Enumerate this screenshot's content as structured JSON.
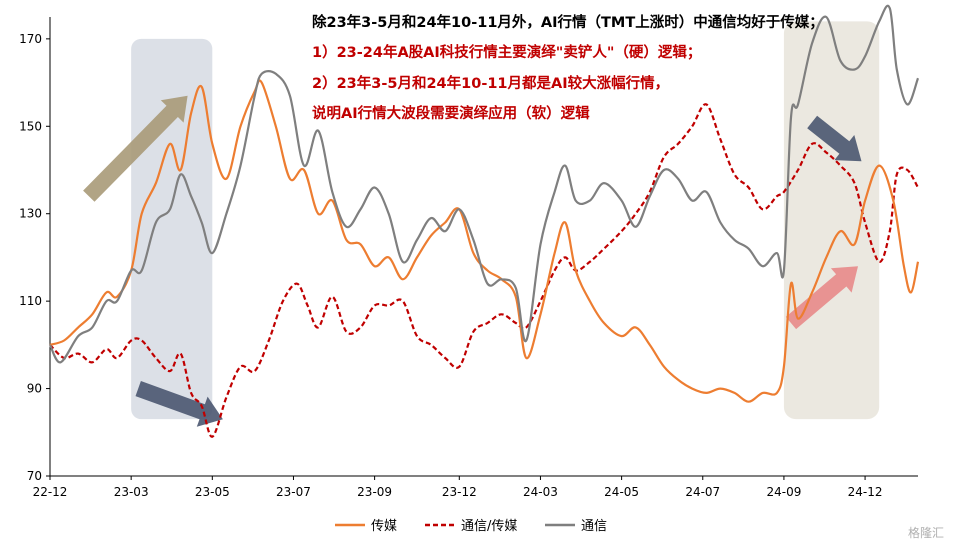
{
  "annotations": {
    "line1": "除23年3-5月和24年10-11月外，AI行情（TMT上涨时）中通信均好于传媒；",
    "line2": "1）23-24年A股AI科技行情主要演绎\"卖铲人\"（硬）逻辑；",
    "line3": "2）23年3-5月和24年10-11月都是AI较大涨幅行情，",
    "line4": "说明AI行情大波段需要演绎应用（软）逻辑",
    "line1_color": "#000000",
    "red_color": "#c00000"
  },
  "watermark": "格隆汇",
  "colors": {
    "media": "#ed7d31",
    "ratio": "#c00000",
    "telecom": "#7f7f7f",
    "shade_blue": "#d6dae3",
    "shade_beige": "#e8e4da",
    "arrow_tan": "#a89a78",
    "arrow_navy": "#4a5670",
    "arrow_pink": "#e88a8a"
  },
  "chart_data": {
    "type": "line",
    "ylim": [
      70,
      175
    ],
    "yticks": [
      70,
      90,
      110,
      130,
      150,
      170
    ],
    "xlim": [
      0,
      24.6
    ],
    "xticks": [
      {
        "pos": 0,
        "label": "22-12"
      },
      {
        "pos": 2.3,
        "label": "23-03"
      },
      {
        "pos": 4.6,
        "label": "23-05"
      },
      {
        "pos": 6.9,
        "label": "23-07"
      },
      {
        "pos": 9.2,
        "label": "23-09"
      },
      {
        "pos": 11.6,
        "label": "23-12"
      },
      {
        "pos": 13.9,
        "label": "24-03"
      },
      {
        "pos": 16.2,
        "label": "24-05"
      },
      {
        "pos": 18.5,
        "label": "24-07"
      },
      {
        "pos": 20.8,
        "label": "24-09"
      },
      {
        "pos": 23.1,
        "label": "24-12"
      }
    ],
    "series": [
      {
        "name": "传媒",
        "style": "solid",
        "points": [
          [
            0.0,
            100
          ],
          [
            0.4,
            101
          ],
          [
            0.8,
            104
          ],
          [
            1.2,
            107
          ],
          [
            1.6,
            112
          ],
          [
            1.9,
            111
          ],
          [
            2.3,
            117
          ],
          [
            2.6,
            130
          ],
          [
            3.0,
            137
          ],
          [
            3.4,
            146
          ],
          [
            3.7,
            140
          ],
          [
            4.0,
            153
          ],
          [
            4.3,
            159
          ],
          [
            4.6,
            146
          ],
          [
            5.0,
            138
          ],
          [
            5.4,
            150
          ],
          [
            5.8,
            158
          ],
          [
            6.0,
            160
          ],
          [
            6.4,
            150
          ],
          [
            6.8,
            138
          ],
          [
            7.2,
            140
          ],
          [
            7.6,
            130
          ],
          [
            8.0,
            133
          ],
          [
            8.4,
            124
          ],
          [
            8.8,
            123
          ],
          [
            9.2,
            118
          ],
          [
            9.6,
            120
          ],
          [
            10.0,
            115
          ],
          [
            10.4,
            120
          ],
          [
            10.8,
            125
          ],
          [
            11.2,
            128
          ],
          [
            11.6,
            131
          ],
          [
            12.0,
            121
          ],
          [
            12.4,
            117
          ],
          [
            12.8,
            115
          ],
          [
            13.2,
            111
          ],
          [
            13.5,
            97
          ],
          [
            13.9,
            107
          ],
          [
            14.3,
            121
          ],
          [
            14.6,
            128
          ],
          [
            14.9,
            117
          ],
          [
            15.3,
            110
          ],
          [
            15.7,
            105
          ],
          [
            16.2,
            102
          ],
          [
            16.6,
            104
          ],
          [
            17.0,
            100
          ],
          [
            17.4,
            95
          ],
          [
            17.8,
            92
          ],
          [
            18.2,
            90
          ],
          [
            18.6,
            89
          ],
          [
            19.0,
            90
          ],
          [
            19.4,
            89
          ],
          [
            19.8,
            87
          ],
          [
            20.2,
            89
          ],
          [
            20.6,
            89
          ],
          [
            20.8,
            95
          ],
          [
            21.0,
            114
          ],
          [
            21.2,
            106
          ],
          [
            21.6,
            112
          ],
          [
            22.0,
            120
          ],
          [
            22.4,
            126
          ],
          [
            22.8,
            123
          ],
          [
            23.1,
            133
          ],
          [
            23.5,
            141
          ],
          [
            23.9,
            133
          ],
          [
            24.2,
            118
          ],
          [
            24.4,
            112
          ],
          [
            24.6,
            119
          ]
        ]
      },
      {
        "name": "通信/传媒",
        "style": "dashed",
        "points": [
          [
            0.0,
            100
          ],
          [
            0.4,
            97
          ],
          [
            0.8,
            98
          ],
          [
            1.2,
            96
          ],
          [
            1.6,
            99
          ],
          [
            1.9,
            97
          ],
          [
            2.3,
            101
          ],
          [
            2.6,
            101
          ],
          [
            3.0,
            97
          ],
          [
            3.4,
            94
          ],
          [
            3.7,
            98
          ],
          [
            4.0,
            89
          ],
          [
            4.3,
            86
          ],
          [
            4.6,
            79
          ],
          [
            5.0,
            88
          ],
          [
            5.4,
            95
          ],
          [
            5.8,
            94
          ],
          [
            6.2,
            101
          ],
          [
            6.6,
            110
          ],
          [
            7.0,
            114
          ],
          [
            7.3,
            109
          ],
          [
            7.6,
            104
          ],
          [
            8.0,
            111
          ],
          [
            8.4,
            103
          ],
          [
            8.8,
            104
          ],
          [
            9.2,
            109
          ],
          [
            9.6,
            109
          ],
          [
            10.0,
            110
          ],
          [
            10.4,
            102
          ],
          [
            10.8,
            100
          ],
          [
            11.2,
            97
          ],
          [
            11.6,
            95
          ],
          [
            12.0,
            103
          ],
          [
            12.4,
            105
          ],
          [
            12.8,
            107
          ],
          [
            13.2,
            105
          ],
          [
            13.5,
            104
          ],
          [
            13.9,
            110
          ],
          [
            14.3,
            117
          ],
          [
            14.6,
            120
          ],
          [
            14.9,
            117
          ],
          [
            15.3,
            119
          ],
          [
            15.7,
            122
          ],
          [
            16.2,
            126
          ],
          [
            16.6,
            130
          ],
          [
            17.0,
            135
          ],
          [
            17.4,
            143
          ],
          [
            17.8,
            146
          ],
          [
            18.2,
            150
          ],
          [
            18.6,
            155
          ],
          [
            19.0,
            147
          ],
          [
            19.4,
            139
          ],
          [
            19.8,
            136
          ],
          [
            20.2,
            131
          ],
          [
            20.6,
            134
          ],
          [
            20.8,
            135
          ],
          [
            21.2,
            140
          ],
          [
            21.6,
            146
          ],
          [
            22.0,
            144
          ],
          [
            22.4,
            141
          ],
          [
            22.8,
            137
          ],
          [
            23.1,
            128
          ],
          [
            23.5,
            119
          ],
          [
            23.8,
            126
          ],
          [
            24.0,
            139
          ],
          [
            24.3,
            140
          ],
          [
            24.6,
            136
          ]
        ]
      },
      {
        "name": "通信",
        "style": "solid",
        "points": [
          [
            0.0,
            100
          ],
          [
            0.3,
            96
          ],
          [
            0.8,
            102
          ],
          [
            1.2,
            104
          ],
          [
            1.6,
            110
          ],
          [
            1.9,
            110
          ],
          [
            2.3,
            117
          ],
          [
            2.6,
            117
          ],
          [
            3.0,
            128
          ],
          [
            3.4,
            131
          ],
          [
            3.7,
            139
          ],
          [
            4.0,
            134
          ],
          [
            4.3,
            128
          ],
          [
            4.6,
            121
          ],
          [
            5.0,
            130
          ],
          [
            5.4,
            141
          ],
          [
            5.8,
            157
          ],
          [
            6.0,
            162
          ],
          [
            6.4,
            162
          ],
          [
            6.8,
            157
          ],
          [
            7.2,
            141
          ],
          [
            7.6,
            149
          ],
          [
            8.0,
            135
          ],
          [
            8.4,
            127
          ],
          [
            8.8,
            131
          ],
          [
            9.2,
            136
          ],
          [
            9.6,
            130
          ],
          [
            10.0,
            119
          ],
          [
            10.4,
            124
          ],
          [
            10.8,
            129
          ],
          [
            11.2,
            126
          ],
          [
            11.6,
            131
          ],
          [
            12.0,
            124
          ],
          [
            12.4,
            114
          ],
          [
            12.8,
            115
          ],
          [
            13.2,
            113
          ],
          [
            13.5,
            101
          ],
          [
            13.9,
            123
          ],
          [
            14.3,
            135
          ],
          [
            14.6,
            141
          ],
          [
            14.9,
            133
          ],
          [
            15.3,
            133
          ],
          [
            15.7,
            137
          ],
          [
            16.2,
            133
          ],
          [
            16.6,
            127
          ],
          [
            17.0,
            134
          ],
          [
            17.4,
            140
          ],
          [
            17.8,
            138
          ],
          [
            18.2,
            133
          ],
          [
            18.6,
            135
          ],
          [
            19.0,
            128
          ],
          [
            19.4,
            124
          ],
          [
            19.8,
            122
          ],
          [
            20.2,
            118
          ],
          [
            20.6,
            121
          ],
          [
            20.8,
            117
          ],
          [
            21.0,
            152
          ],
          [
            21.2,
            155
          ],
          [
            21.6,
            169
          ],
          [
            22.0,
            175
          ],
          [
            22.4,
            165
          ],
          [
            22.8,
            163
          ],
          [
            23.1,
            166
          ],
          [
            23.5,
            174
          ],
          [
            23.8,
            177
          ],
          [
            24.0,
            163
          ],
          [
            24.3,
            155
          ],
          [
            24.6,
            161
          ]
        ]
      }
    ],
    "legend": [
      "传媒",
      "通信/传媒",
      "通信"
    ],
    "legend_position": "bottom"
  }
}
